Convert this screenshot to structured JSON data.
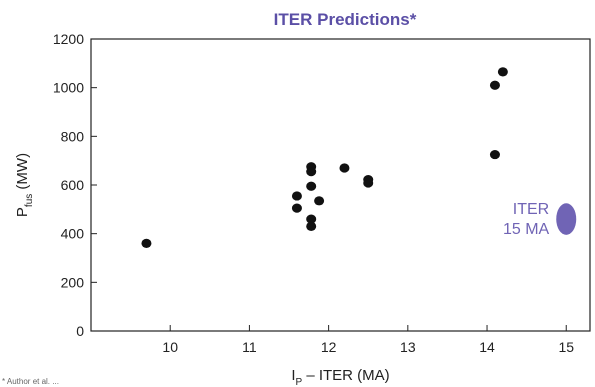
{
  "chart_data": {
    "type": "scatter",
    "title": "ITER Predictions*",
    "xlabel": {
      "main": "I",
      "sub": "P",
      "rest": " – ITER (MA)"
    },
    "ylabel": {
      "main": "P",
      "sub": "fus",
      "rest": " (MW)"
    },
    "xlim": [
      9.0,
      15.3
    ],
    "ylim": [
      0,
      1200
    ],
    "xticks": [
      10,
      11,
      12,
      13,
      14,
      15
    ],
    "yticks": [
      0,
      200,
      400,
      600,
      800,
      1000,
      1200
    ],
    "grid": false,
    "series": [
      {
        "points": [
          {
            "x": 9.7,
            "y": 360
          },
          {
            "x": 11.6,
            "y": 555
          },
          {
            "x": 11.6,
            "y": 505
          },
          {
            "x": 11.78,
            "y": 675
          },
          {
            "x": 11.78,
            "y": 655
          },
          {
            "x": 11.78,
            "y": 595
          },
          {
            "x": 11.78,
            "y": 460
          },
          {
            "x": 11.78,
            "y": 430
          },
          {
            "x": 11.88,
            "y": 535
          },
          {
            "x": 12.2,
            "y": 670
          },
          {
            "x": 12.5,
            "y": 622
          },
          {
            "x": 12.5,
            "y": 608
          },
          {
            "x": 14.1,
            "y": 1010
          },
          {
            "x": 14.2,
            "y": 1065
          },
          {
            "x": 14.1,
            "y": 725
          }
        ]
      }
    ],
    "annotation": {
      "lines": [
        "ITER",
        "15 MA"
      ],
      "x": 15.0,
      "y": 460,
      "y_range": [
        395,
        525
      ]
    }
  },
  "footnote": "* Author et al. ...",
  "colors": {
    "title": "#5b4fa6",
    "points": "#111111",
    "annotation": "#7064b5",
    "axis": "#222222"
  }
}
